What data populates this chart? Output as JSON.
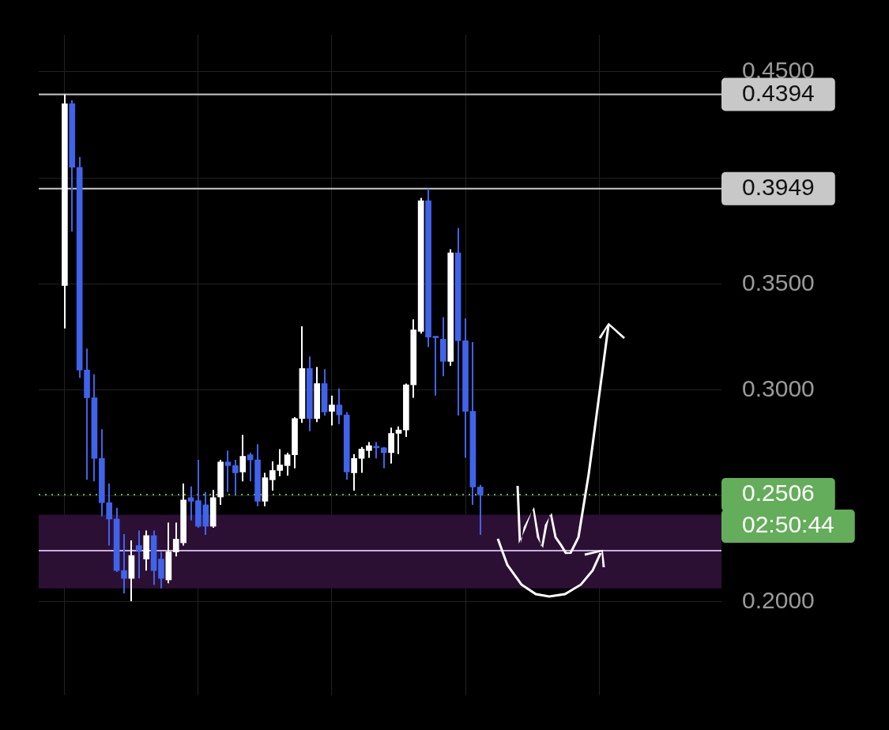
{
  "chart_data": {
    "type": "candlestick",
    "categories": [
      null,
      null,
      null,
      null,
      null,
      null,
      null,
      null,
      null,
      null,
      null,
      null,
      null,
      null,
      null,
      null,
      null,
      null,
      null,
      null,
      null,
      null,
      null,
      null,
      null,
      null,
      null,
      null,
      null,
      null,
      null,
      null,
      null,
      null,
      null,
      null,
      null,
      null,
      null,
      null,
      null,
      null,
      null,
      null,
      null,
      null,
      null,
      null,
      null,
      null,
      null,
      null,
      null,
      null,
      null,
      null,
      null,
      null,
      null,
      null,
      null,
      null,
      null,
      null,
      null,
      null,
      null,
      null,
      null,
      null,
      null,
      null,
      null,
      null,
      null,
      null,
      null,
      null,
      null,
      null,
      null,
      null,
      null,
      null,
      null,
      null,
      null,
      null,
      null,
      null,
      null,
      null
    ],
    "ohlc": [
      null,
      null,
      null,
      [
        0.3492,
        0.4394,
        0.329,
        0.435
      ],
      [
        0.435,
        0.4367,
        0.3747,
        0.405
      ],
      [
        0.405,
        0.4098,
        0.3057,
        0.3094
      ],
      [
        0.3094,
        0.3195,
        0.2576,
        0.2963
      ],
      [
        0.2963,
        0.3074,
        0.2569,
        0.2677
      ],
      [
        0.2677,
        0.2815,
        0.2404,
        0.2468
      ],
      [
        0.2468,
        0.2559,
        0.2266,
        0.2391
      ],
      [
        0.2391,
        0.2444,
        0.2141,
        0.2148
      ],
      [
        0.2148,
        0.232,
        0.204,
        0.2111
      ],
      [
        0.2111,
        0.229,
        0.2003,
        0.2219
      ],
      [
        0.2266,
        0.2337,
        0.2111,
        0.2242
      ],
      [
        0.2202,
        0.2337,
        0.2148,
        0.2313
      ],
      [
        0.2313,
        0.2337,
        0.2081,
        0.2148
      ],
      [
        0.2202,
        0.2236,
        0.2064,
        0.2111
      ],
      [
        0.2104,
        0.2374,
        0.2088,
        0.2236
      ],
      [
        0.2236,
        0.2374,
        0.2215,
        0.2296
      ],
      [
        0.2279,
        0.2559,
        0.2266,
        0.2481
      ],
      [
        0.2492,
        0.2545,
        0.2384,
        0.2475
      ],
      [
        0.2478,
        0.267,
        0.235,
        0.2357
      ],
      [
        0.2458,
        0.2519,
        0.2316,
        0.2357
      ],
      [
        0.2357,
        0.2529,
        0.235,
        0.2492
      ],
      [
        0.2495,
        0.267,
        0.2458,
        0.266
      ],
      [
        0.266,
        0.2714,
        0.2519,
        0.2643
      ],
      [
        0.2643,
        0.267,
        0.2508,
        0.2609
      ],
      [
        0.2613,
        0.2788,
        0.2569,
        0.2687
      ],
      [
        0.2694,
        0.2704,
        0.2569,
        0.267
      ],
      [
        0.267,
        0.2744,
        0.2451,
        0.2475
      ],
      [
        0.2475,
        0.2609,
        0.2451,
        0.2586
      ],
      [
        0.2576,
        0.2663,
        0.2525,
        0.262
      ],
      [
        0.262,
        0.2721,
        0.2593,
        0.2646
      ],
      [
        0.2643,
        0.2704,
        0.2596,
        0.2694
      ],
      [
        0.2694,
        0.2872,
        0.263,
        0.2865
      ],
      [
        0.2865,
        0.33,
        0.2845,
        0.3101
      ],
      [
        0.3101,
        0.3158,
        0.2805,
        0.2865
      ],
      [
        0.2865,
        0.3108,
        0.2848,
        0.303
      ],
      [
        0.303,
        0.3098,
        0.2879,
        0.2896
      ],
      [
        0.2899,
        0.2973,
        0.2832,
        0.2929
      ],
      [
        0.2929,
        0.3007,
        0.2838,
        0.2882
      ],
      [
        0.2882,
        0.2896,
        0.2576,
        0.2613
      ],
      [
        0.2609,
        0.2697,
        0.2525,
        0.2677
      ],
      [
        0.2677,
        0.2731,
        0.2609,
        0.2721
      ],
      [
        0.2714,
        0.2754,
        0.268,
        0.2737
      ],
      [
        0.2734,
        0.2754,
        0.2677,
        0.2727
      ],
      [
        0.2727,
        0.2731,
        0.263,
        0.2704
      ],
      [
        0.2704,
        0.2822,
        0.2653,
        0.2795
      ],
      [
        0.2795,
        0.2828,
        0.2697,
        0.2811
      ],
      [
        0.2811,
        0.303,
        0.2778,
        0.3024
      ],
      [
        0.3024,
        0.3333,
        0.2963,
        0.3283
      ],
      [
        0.3276,
        0.3906,
        0.3266,
        0.3892
      ],
      [
        0.3892,
        0.3949,
        0.3202,
        0.3249
      ],
      [
        0.3253,
        0.3253,
        0.2973,
        0.3246
      ],
      [
        0.3239,
        0.3343,
        0.3064,
        0.3135
      ],
      [
        0.3135,
        0.3663,
        0.3114,
        0.3646
      ],
      [
        0.3646,
        0.3764,
        0.2879,
        0.3232
      ],
      [
        0.3232,
        0.3337,
        0.268,
        0.2899
      ],
      [
        0.2899,
        0.3226,
        0.2458,
        0.2542
      ],
      [
        0.2542,
        0.2552,
        0.2316,
        0.2506
      ],
      null,
      null,
      null,
      null,
      null,
      null,
      null,
      null,
      null,
      null,
      null,
      null,
      null,
      null,
      null,
      null,
      null,
      null,
      null,
      null,
      null,
      null,
      null,
      null,
      null,
      null,
      null,
      null,
      null,
      null,
      null,
      null
    ],
    "colors": [
      null,
      null,
      null,
      "#ffffff",
      "#4063ea",
      "#4063ea",
      "#4063ea",
      "#4063ea",
      "#4063ea",
      "#4063ea",
      "#4063ea",
      "#4063ea",
      "#ffffff",
      "#4063ea",
      "#ffffff",
      "#4063ea",
      "#4063ea",
      "#ffffff",
      "#ffffff",
      "#ffffff",
      "#4063ea",
      "#4063ea",
      "#4063ea",
      "#ffffff",
      "#ffffff",
      "#4063ea",
      "#4063ea",
      "#ffffff",
      "#4063ea",
      "#4063ea",
      "#ffffff",
      "#ffffff",
      "#ffffff",
      "#ffffff",
      "#ffffff",
      "#ffffff",
      "#4063ea",
      "#ffffff",
      "#4063ea",
      "#ffffff",
      "#4063ea",
      "#4063ea",
      "#ffffff",
      "#ffffff",
      "#ffffff",
      "#4063ea",
      "#4063ea",
      "#ffffff",
      "#ffffff",
      "#ffffff",
      "#ffffff",
      "#ffffff",
      "#4063ea",
      "#4063ea",
      "#4063ea",
      "#ffffff",
      "#4063ea",
      "#4063ea",
      "#4063ea",
      "#4063ea",
      null,
      null,
      null,
      null,
      null,
      null,
      null,
      null,
      null,
      null,
      null,
      null,
      null,
      null,
      null,
      null,
      null,
      null,
      null,
      null,
      null,
      null,
      null,
      null,
      null,
      null,
      null,
      null,
      null,
      null,
      null,
      null
    ],
    "ylim": [
      0.156,
      0.4675
    ],
    "yticks": [
      {
        "value": 0.2,
        "label": "0.2000"
      },
      {
        "value": 0.25,
        "label": null
      },
      {
        "value": 0.3,
        "label": "0.3000"
      },
      {
        "value": 0.35,
        "label": "0.3500"
      },
      {
        "value": 0.4,
        "label": null
      },
      {
        "value": 0.45,
        "label": "0.4500"
      }
    ],
    "tick_labels": "y",
    "grid": true,
    "bands": [
      {
        "axis": "y",
        "from": 0.2064,
        "to": 0.2411,
        "color": "#2c1034"
      }
    ],
    "ref_lines": [
      {
        "axis": "y",
        "value": 0.4394,
        "label": "0.4394",
        "color": "#c8c8c8"
      },
      {
        "axis": "y",
        "value": 0.3949,
        "label": "0.3949",
        "color": "#c8c8c8"
      },
      {
        "axis": "y",
        "value": 0.2506,
        "label": "0.2506",
        "color": "#64ad5a",
        "line_style": "dotted"
      },
      {
        "axis": "y",
        "value": 0.2242,
        "color": "#c9aede"
      }
    ],
    "annotations": [
      "02:50:44"
    ]
  }
}
